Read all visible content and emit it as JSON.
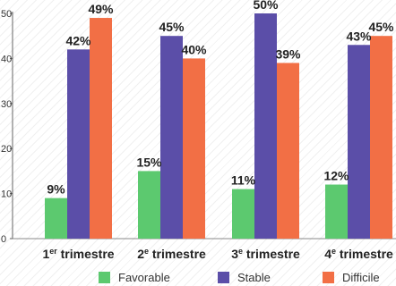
{
  "chart_data": {
    "type": "bar",
    "categories": [
      "1er trimestre",
      "2e trimestre",
      "3e trimestre",
      "4e trimestre"
    ],
    "category_parts": [
      {
        "main": "1",
        "sup": "er",
        "rest": " trimestre"
      },
      {
        "main": "2",
        "sup": "e",
        "rest": " trimestre"
      },
      {
        "main": "3",
        "sup": "e",
        "rest": " trimestre"
      },
      {
        "main": "4",
        "sup": "e",
        "rest": " trimestre"
      }
    ],
    "series": [
      {
        "name": "Favorable",
        "values": [
          9,
          15,
          11,
          12
        ],
        "labels": [
          "9%",
          "15%",
          "11%",
          "12%"
        ],
        "color": "#5cc96f"
      },
      {
        "name": "Stable",
        "values": [
          42,
          45,
          50,
          43
        ],
        "labels": [
          "42%",
          "45%",
          "50%",
          "43%"
        ],
        "color": "#5b4ea8"
      },
      {
        "name": "Difficile",
        "values": [
          49,
          40,
          39,
          45
        ],
        "labels": [
          "49%",
          "40%",
          "39%",
          "45%"
        ],
        "color": "#f26f45"
      }
    ],
    "ylim": [
      0,
      50
    ],
    "yticks": [
      0,
      10,
      20,
      30,
      40,
      50
    ],
    "legend_position": "bottom",
    "grid": false
  }
}
